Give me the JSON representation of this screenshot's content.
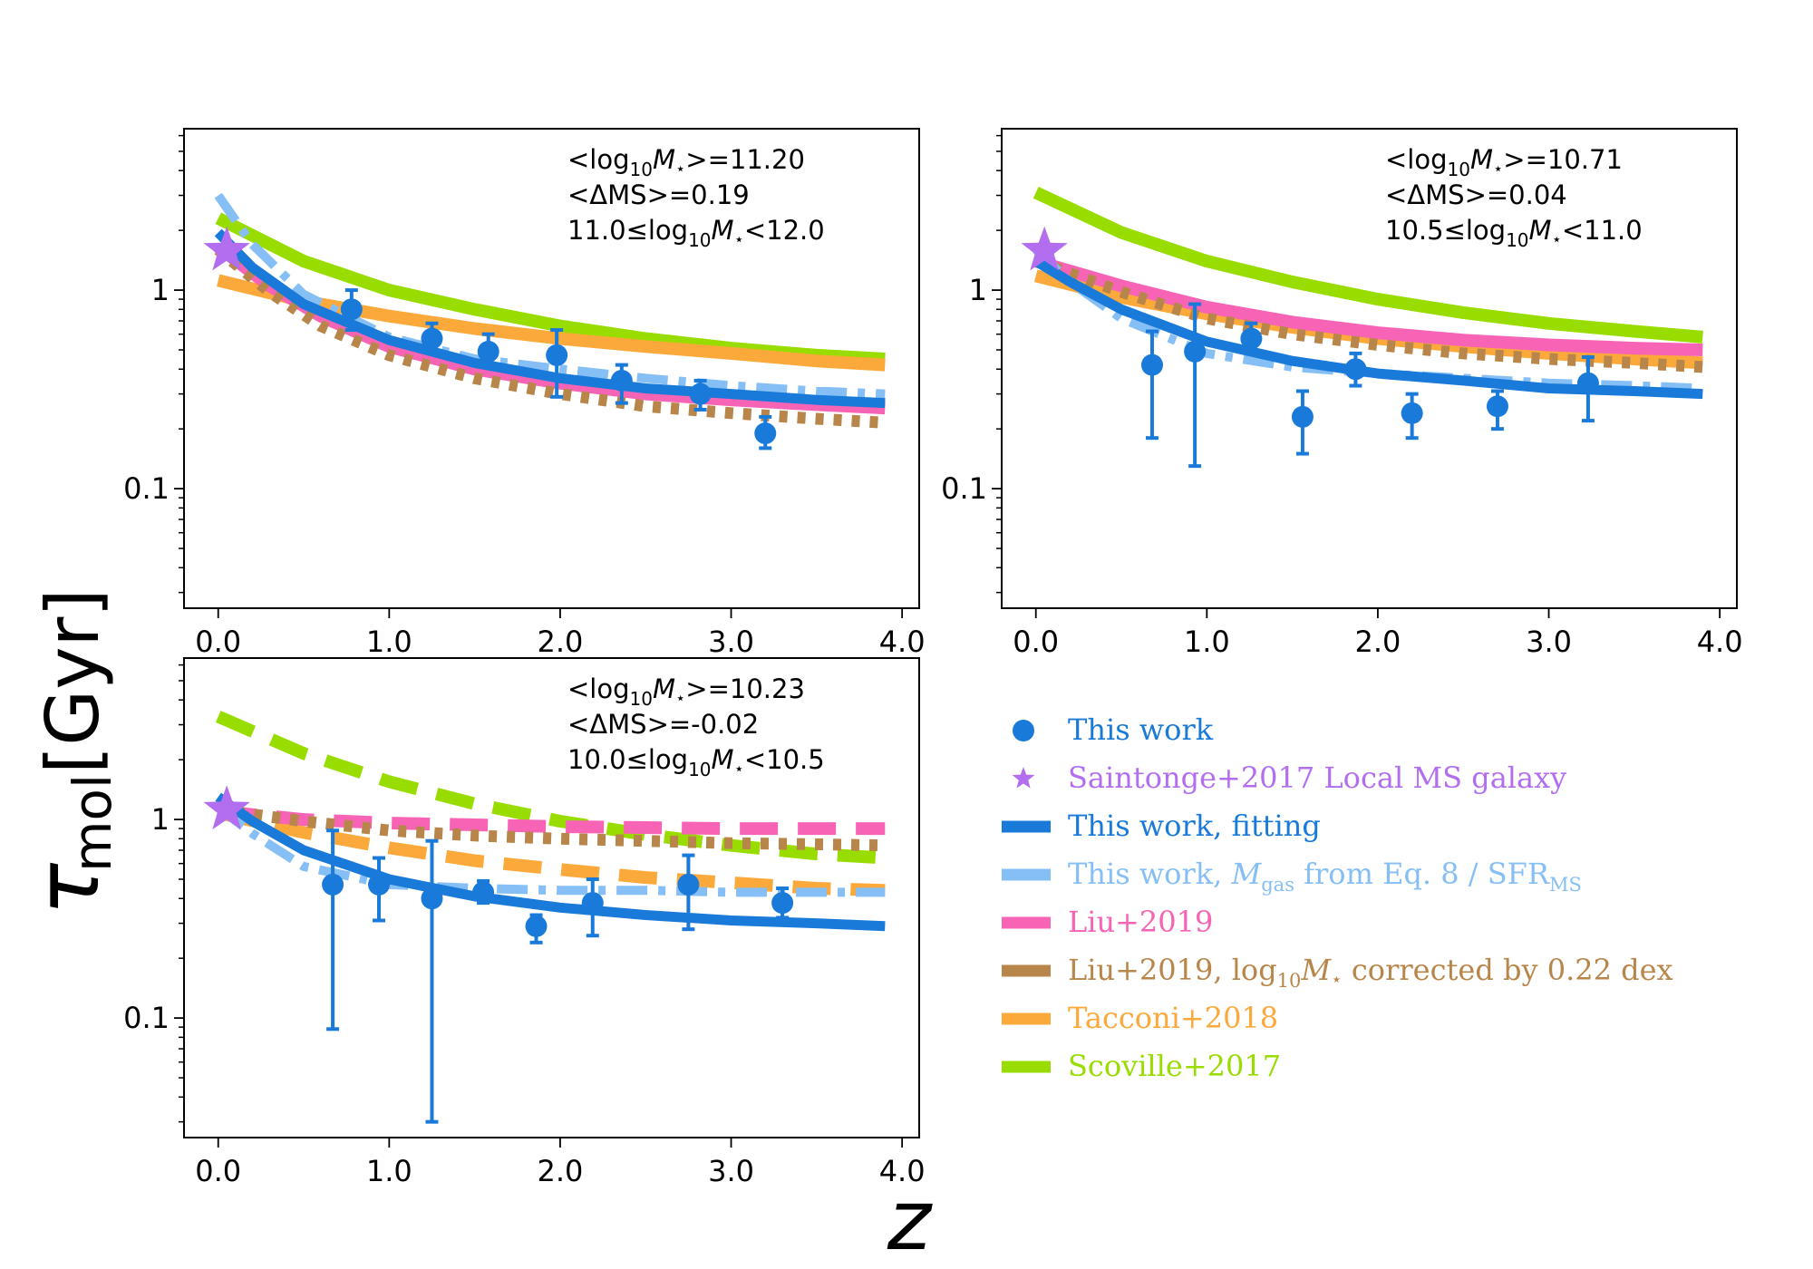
{
  "figure": {
    "ylabel_main": "τ",
    "ylabel_sub": "mol",
    "ylabel_unit": "[Gyr]",
    "xlabel": "z"
  },
  "colors": {
    "this_work": "#1a7ad9",
    "saintonge": "#b36ef0",
    "fit": "#1a7ad9",
    "eq8": "#86bff5",
    "liu": "#f763b5",
    "liu_corr": "#b8864a",
    "tacconi": "#fba93b",
    "scoville": "#99dd00"
  },
  "legend": [
    {
      "key": "this_work",
      "label": "This work",
      "style": "marker-circle"
    },
    {
      "key": "saintonge",
      "label": "Saintonge+2017 Local MS galaxy",
      "style": "marker-star"
    },
    {
      "key": "fit",
      "label": "This work, fitting",
      "style": "line"
    },
    {
      "key": "eq8",
      "label_parts": [
        "This work, ",
        "M",
        "gas",
        " from Eq. 8 / SFR",
        "MS"
      ],
      "style": "line"
    },
    {
      "key": "liu",
      "label": "Liu+2019",
      "style": "line"
    },
    {
      "key": "liu_corr",
      "label_parts": [
        "Liu+2019, log",
        "10",
        "M",
        "⋆",
        " corrected by 0.22 dex"
      ],
      "style": "line"
    },
    {
      "key": "tacconi",
      "label": "Tacconi+2018",
      "style": "line"
    },
    {
      "key": "scoville",
      "label": "Scoville+2017",
      "style": "line"
    }
  ],
  "chart_data": [
    {
      "type": "scatter",
      "panel": "top-left",
      "annotation": {
        "mean_mass": "11.20",
        "mean_dms": "0.19",
        "bin_lo": "11.0",
        "bin_hi": "12.0"
      },
      "xlim": [
        -0.2,
        4.1
      ],
      "ylim": [
        0.025,
        6.5
      ],
      "yscale": "log",
      "xticks": [
        "0.0",
        "1.0",
        "2.0",
        "3.0",
        "4.0"
      ],
      "yticks": [
        {
          "value": 0.1,
          "label": "0.1"
        },
        {
          "value": 1,
          "label": "1"
        }
      ],
      "points": [
        {
          "x": 0.78,
          "y": 0.8,
          "lo": 0.63,
          "hi": 1.0
        },
        {
          "x": 1.25,
          "y": 0.57,
          "lo": 0.49,
          "hi": 0.68
        },
        {
          "x": 1.58,
          "y": 0.49,
          "lo": 0.42,
          "hi": 0.6
        },
        {
          "x": 1.98,
          "y": 0.47,
          "lo": 0.29,
          "hi": 0.63
        },
        {
          "x": 2.36,
          "y": 0.35,
          "lo": 0.27,
          "hi": 0.42
        },
        {
          "x": 2.82,
          "y": 0.3,
          "lo": 0.25,
          "hi": 0.35
        },
        {
          "x": 3.2,
          "y": 0.19,
          "lo": 0.16,
          "hi": 0.23
        }
      ],
      "star": {
        "x": 0.05,
        "y": 1.58
      },
      "curves": [
        {
          "key": "scoville",
          "dash": "solid",
          "x": [
            0,
            0.5,
            1,
            1.5,
            2,
            2.5,
            3,
            3.5,
            3.9
          ],
          "y": [
            2.3,
            1.4,
            1.0,
            0.8,
            0.66,
            0.57,
            0.51,
            0.47,
            0.45
          ]
        },
        {
          "key": "tacconi",
          "dash": "solid",
          "x": [
            0,
            0.5,
            1,
            1.5,
            2,
            2.5,
            3,
            3.5,
            3.9
          ],
          "y": [
            1.12,
            0.88,
            0.74,
            0.64,
            0.57,
            0.52,
            0.48,
            0.44,
            0.42
          ]
        },
        {
          "key": "liu",
          "dash": "solid",
          "x": [
            0,
            0.3,
            0.6,
            1,
            1.5,
            2,
            2.5,
            3,
            3.5,
            3.9
          ],
          "y": [
            1.65,
            1.05,
            0.74,
            0.52,
            0.4,
            0.34,
            0.3,
            0.28,
            0.265,
            0.255
          ]
        },
        {
          "key": "liu_corr",
          "dash": "dot",
          "x": [
            0,
            0.3,
            0.6,
            1,
            1.5,
            2,
            2.5,
            3,
            3.5,
            3.9
          ],
          "y": [
            1.6,
            0.98,
            0.66,
            0.47,
            0.36,
            0.3,
            0.26,
            0.24,
            0.225,
            0.215
          ]
        },
        {
          "key": "eq8",
          "dash": "dashdot",
          "x": [
            0,
            0.2,
            0.5,
            1,
            1.5,
            2,
            2.5,
            3,
            3.5,
            3.9
          ],
          "y": [
            3.0,
            1.7,
            0.95,
            0.58,
            0.45,
            0.4,
            0.36,
            0.33,
            0.31,
            0.3
          ]
        },
        {
          "key": "fit",
          "dash": "solid",
          "x": [
            0,
            0.2,
            0.5,
            1,
            1.5,
            2,
            2.5,
            3,
            3.5,
            3.9
          ],
          "y": [
            1.95,
            1.3,
            0.85,
            0.56,
            0.43,
            0.36,
            0.32,
            0.3,
            0.28,
            0.27
          ]
        }
      ]
    },
    {
      "type": "scatter",
      "panel": "top-right",
      "annotation": {
        "mean_mass": "10.71",
        "mean_dms": "0.04",
        "bin_lo": "10.5",
        "bin_hi": "11.0"
      },
      "xlim": [
        -0.2,
        4.1
      ],
      "ylim": [
        0.025,
        6.5
      ],
      "yscale": "log",
      "xticks": [
        "0.0",
        "1.0",
        "2.0",
        "3.0",
        "4.0"
      ],
      "yticks": [
        {
          "value": 0.1,
          "label": "0.1"
        },
        {
          "value": 1,
          "label": "1"
        }
      ],
      "points": [
        {
          "x": 0.68,
          "y": 0.42,
          "lo": 0.18,
          "hi": 0.62
        },
        {
          "x": 0.93,
          "y": 0.49,
          "lo": 0.13,
          "hi": 0.85
        },
        {
          "x": 1.26,
          "y": 0.57,
          "lo": 0.48,
          "hi": 0.68
        },
        {
          "x": 1.56,
          "y": 0.23,
          "lo": 0.15,
          "hi": 0.31
        },
        {
          "x": 1.87,
          "y": 0.4,
          "lo": 0.33,
          "hi": 0.48
        },
        {
          "x": 2.2,
          "y": 0.24,
          "lo": 0.18,
          "hi": 0.3
        },
        {
          "x": 2.7,
          "y": 0.26,
          "lo": 0.2,
          "hi": 0.31
        },
        {
          "x": 3.23,
          "y": 0.34,
          "lo": 0.22,
          "hi": 0.46
        }
      ],
      "star": {
        "x": 0.05,
        "y": 1.58
      },
      "curves": [
        {
          "key": "scoville",
          "dash": "solid",
          "x": [
            0,
            0.5,
            1,
            1.5,
            2,
            2.5,
            3,
            3.5,
            3.9
          ],
          "y": [
            3.1,
            1.95,
            1.4,
            1.1,
            0.9,
            0.77,
            0.68,
            0.62,
            0.58
          ]
        },
        {
          "key": "tacconi",
          "dash": "solid",
          "x": [
            0,
            0.5,
            1,
            1.5,
            2,
            2.5,
            3,
            3.5,
            3.9
          ],
          "y": [
            1.18,
            0.92,
            0.76,
            0.65,
            0.57,
            0.52,
            0.48,
            0.45,
            0.43
          ]
        },
        {
          "key": "liu",
          "dash": "solid",
          "x": [
            0,
            0.5,
            1,
            1.5,
            2,
            2.5,
            3,
            3.5,
            3.9
          ],
          "y": [
            1.4,
            1.05,
            0.82,
            0.69,
            0.61,
            0.56,
            0.53,
            0.51,
            0.5
          ]
        },
        {
          "key": "liu_corr",
          "dash": "dot",
          "x": [
            0,
            0.5,
            1,
            1.5,
            2,
            2.5,
            3,
            3.5,
            3.9
          ],
          "y": [
            1.4,
            0.98,
            0.72,
            0.6,
            0.53,
            0.48,
            0.45,
            0.43,
            0.41
          ]
        },
        {
          "key": "eq8",
          "dash": "dashdot",
          "x": [
            0,
            0.2,
            0.5,
            1,
            1.5,
            2,
            2.5,
            3,
            3.5,
            3.9
          ],
          "y": [
            1.6,
            1.1,
            0.72,
            0.48,
            0.41,
            0.38,
            0.36,
            0.34,
            0.33,
            0.32
          ]
        },
        {
          "key": "fit",
          "dash": "solid",
          "x": [
            0,
            0.2,
            0.5,
            1,
            1.5,
            2,
            2.5,
            3,
            3.5,
            3.9
          ],
          "y": [
            1.4,
            1.1,
            0.8,
            0.55,
            0.44,
            0.38,
            0.35,
            0.32,
            0.31,
            0.3
          ]
        }
      ]
    },
    {
      "type": "scatter",
      "panel": "bottom-left",
      "annotation": {
        "mean_mass": "10.23",
        "mean_dms": "-0.02",
        "bin_lo": "10.0",
        "bin_hi": "10.5"
      },
      "xlim": [
        -0.2,
        4.1
      ],
      "ylim": [
        0.025,
        6.5
      ],
      "yscale": "log",
      "xticks": [
        "0.0",
        "1.0",
        "2.0",
        "3.0",
        "4.0"
      ],
      "yticks": [
        {
          "value": 0.1,
          "label": "0.1"
        },
        {
          "value": 1,
          "label": "1"
        }
      ],
      "points": [
        {
          "x": 0.67,
          "y": 0.47,
          "lo": 0.088,
          "hi": 0.88
        },
        {
          "x": 0.94,
          "y": 0.47,
          "lo": 0.31,
          "hi": 0.64
        },
        {
          "x": 1.25,
          "y": 0.4,
          "lo": 0.03,
          "hi": 0.78
        },
        {
          "x": 1.55,
          "y": 0.43,
          "lo": 0.38,
          "hi": 0.49
        },
        {
          "x": 1.86,
          "y": 0.29,
          "lo": 0.24,
          "hi": 0.33
        },
        {
          "x": 2.19,
          "y": 0.38,
          "lo": 0.26,
          "hi": 0.5
        },
        {
          "x": 2.75,
          "y": 0.47,
          "lo": 0.28,
          "hi": 0.66
        },
        {
          "x": 3.3,
          "y": 0.38,
          "lo": 0.32,
          "hi": 0.45
        }
      ],
      "star": {
        "x": 0.05,
        "y": 1.12
      },
      "curves": [
        {
          "key": "scoville",
          "dash": "dash",
          "x": [
            0,
            0.5,
            1,
            1.5,
            2,
            2.5,
            3,
            3.5,
            3.9
          ],
          "y": [
            3.3,
            2.15,
            1.55,
            1.2,
            0.98,
            0.84,
            0.74,
            0.67,
            0.64
          ]
        },
        {
          "key": "tacconi",
          "dash": "dash",
          "x": [
            0,
            0.5,
            1,
            1.5,
            2,
            2.5,
            3,
            3.5,
            3.9
          ],
          "y": [
            1.08,
            0.86,
            0.72,
            0.62,
            0.56,
            0.51,
            0.48,
            0.45,
            0.44
          ]
        },
        {
          "key": "liu",
          "dash": "dash",
          "x": [
            0,
            0.5,
            1,
            1.5,
            2,
            2.5,
            3,
            3.5,
            3.9
          ],
          "y": [
            1.1,
            1.0,
            0.96,
            0.94,
            0.92,
            0.91,
            0.9,
            0.9,
            0.9
          ]
        },
        {
          "key": "liu_corr",
          "dash": "dot",
          "x": [
            0,
            0.5,
            1,
            1.5,
            2,
            2.5,
            3,
            3.5,
            3.9
          ],
          "y": [
            1.12,
            0.98,
            0.88,
            0.83,
            0.8,
            0.78,
            0.76,
            0.75,
            0.74
          ]
        },
        {
          "key": "eq8",
          "dash": "dashdot",
          "x": [
            0,
            0.2,
            0.5,
            1,
            1.5,
            2,
            2.5,
            3,
            3.5,
            3.9
          ],
          "y": [
            1.15,
            0.85,
            0.58,
            0.47,
            0.45,
            0.44,
            0.44,
            0.43,
            0.43,
            0.43
          ]
        },
        {
          "key": "fit",
          "dash": "solid",
          "x": [
            0,
            0.2,
            0.5,
            1,
            1.5,
            2,
            2.5,
            3,
            3.5,
            3.9
          ],
          "y": [
            1.3,
            0.98,
            0.7,
            0.5,
            0.41,
            0.36,
            0.33,
            0.31,
            0.3,
            0.29
          ]
        }
      ]
    }
  ]
}
